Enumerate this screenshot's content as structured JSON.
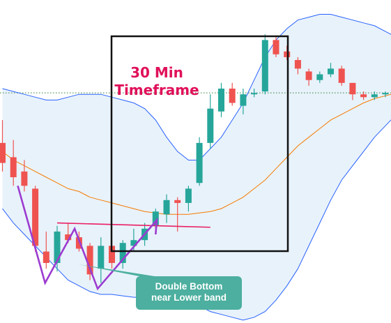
{
  "chart_data": {
    "type": "candlestick",
    "title": "30 Min\nTimeframe",
    "annotation": [
      "Double Bottom",
      "near Lower band"
    ],
    "colors": {
      "up": "#26a69a",
      "down": "#ef5350",
      "upper_band": "#2962ff",
      "lower_band": "#2962ff",
      "middle_band": "#f57c00",
      "band_fill": "#e8f2fb",
      "pattern": "#9c3bd0",
      "neckline": "#e91e63",
      "callout": "#4caf9f",
      "box": "#111111",
      "title": "#e0105a"
    },
    "candles": [
      {
        "o": 1.08,
        "h": 1.16,
        "l": 0.98,
        "c": 1.01
      },
      {
        "o": 1.03,
        "h": 1.09,
        "l": 0.93,
        "c": 0.96
      },
      {
        "o": 0.98,
        "h": 1.02,
        "l": 0.91,
        "c": 0.93
      },
      {
        "o": 0.92,
        "h": 0.93,
        "l": 0.7,
        "c": 0.72
      },
      {
        "o": 0.7,
        "h": 0.77,
        "l": 0.64,
        "c": 0.66
      },
      {
        "o": 0.66,
        "h": 0.79,
        "l": 0.63,
        "c": 0.77
      },
      {
        "o": 0.76,
        "h": 0.8,
        "l": 0.73,
        "c": 0.74
      },
      {
        "o": 0.75,
        "h": 0.77,
        "l": 0.7,
        "c": 0.71
      },
      {
        "o": 0.72,
        "h": 0.73,
        "l": 0.6,
        "c": 0.62
      },
      {
        "o": 0.64,
        "h": 0.75,
        "l": 0.59,
        "c": 0.72
      },
      {
        "o": 0.72,
        "h": 0.74,
        "l": 0.64,
        "c": 0.66
      },
      {
        "o": 0.66,
        "h": 0.74,
        "l": 0.64,
        "c": 0.73
      },
      {
        "o": 0.72,
        "h": 0.78,
        "l": 0.7,
        "c": 0.74
      },
      {
        "o": 0.74,
        "h": 0.8,
        "l": 0.72,
        "c": 0.78
      },
      {
        "o": 0.79,
        "h": 0.85,
        "l": 0.77,
        "c": 0.84
      },
      {
        "o": 0.83,
        "h": 0.9,
        "l": 0.8,
        "c": 0.88
      },
      {
        "o": 0.88,
        "h": 0.89,
        "l": 0.77,
        "c": 0.87
      },
      {
        "o": 0.87,
        "h": 0.93,
        "l": 0.84,
        "c": 0.92
      },
      {
        "o": 0.94,
        "h": 1.1,
        "l": 0.93,
        "c": 1.08
      },
      {
        "o": 1.08,
        "h": 1.25,
        "l": 1.06,
        "c": 1.2
      },
      {
        "o": 1.19,
        "h": 1.29,
        "l": 1.17,
        "c": 1.27
      },
      {
        "o": 1.27,
        "h": 1.29,
        "l": 1.21,
        "c": 1.22
      },
      {
        "o": 1.21,
        "h": 1.27,
        "l": 1.18,
        "c": 1.25
      },
      {
        "o": 1.25,
        "h": 1.27,
        "l": 1.24,
        "c": 1.255
      },
      {
        "o": 1.26,
        "h": 1.46,
        "l": 1.25,
        "c": 1.44
      },
      {
        "o": 1.44,
        "h": 1.45,
        "l": 1.38,
        "c": 1.39
      },
      {
        "o": 1.4,
        "h": 1.42,
        "l": 1.37,
        "c": 1.38
      },
      {
        "o": 1.37,
        "h": 1.38,
        "l": 1.32,
        "c": 1.34
      },
      {
        "o": 1.33,
        "h": 1.34,
        "l": 1.28,
        "c": 1.3
      },
      {
        "o": 1.3,
        "h": 1.33,
        "l": 1.29,
        "c": 1.32
      },
      {
        "o": 1.32,
        "h": 1.36,
        "l": 1.31,
        "c": 1.34
      },
      {
        "o": 1.34,
        "h": 1.35,
        "l": 1.28,
        "c": 1.29
      },
      {
        "o": 1.29,
        "h": 1.29,
        "l": 1.23,
        "c": 1.25
      },
      {
        "o": 1.25,
        "h": 1.26,
        "l": 1.23,
        "c": 1.24
      },
      {
        "o": 1.24,
        "h": 1.26,
        "l": 1.23,
        "c": 1.25
      },
      {
        "o": 1.25,
        "h": 1.26,
        "l": 1.24,
        "c": 1.255
      },
      {
        "o": 1.255,
        "h": 1.27,
        "l": 1.24,
        "c": 1.26
      }
    ],
    "upper_band": [
      1.27,
      1.26,
      1.25,
      1.24,
      1.23,
      1.23,
      1.24,
      1.25,
      1.25,
      1.25,
      1.24,
      1.23,
      1.22,
      1.2,
      1.16,
      1.1,
      1.05,
      1.02,
      1.02,
      1.06,
      1.1,
      1.16,
      1.22,
      1.3,
      1.38,
      1.44,
      1.48,
      1.51,
      1.52,
      1.53,
      1.53,
      1.52,
      1.51,
      1.5,
      1.49,
      1.47,
      1.45
    ],
    "middle_band": [
      1.05,
      1.02,
      1.0,
      0.98,
      0.96,
      0.94,
      0.92,
      0.91,
      0.89,
      0.88,
      0.87,
      0.86,
      0.85,
      0.84,
      0.835,
      0.83,
      0.83,
      0.83,
      0.835,
      0.84,
      0.85,
      0.87,
      0.89,
      0.92,
      0.95,
      0.99,
      1.03,
      1.07,
      1.1,
      1.13,
      1.16,
      1.18,
      1.2,
      1.22,
      1.235,
      1.245,
      1.255
    ],
    "lower_band": [
      0.85,
      0.8,
      0.76,
      0.72,
      0.68,
      0.64,
      0.6,
      0.58,
      0.56,
      0.55,
      0.55,
      0.545,
      0.54,
      0.54,
      0.535,
      0.53,
      0.53,
      0.525,
      0.51,
      0.49,
      0.48,
      0.47,
      0.46,
      0.47,
      0.49,
      0.53,
      0.58,
      0.64,
      0.72,
      0.8,
      0.88,
      0.95,
      1.0,
      1.05,
      1.1,
      1.14,
      1.18
    ],
    "dotted_level": 1.255,
    "neckline_level": 0.8,
    "double_bottom_path": [
      {
        "i": 1.4,
        "v": 0.93
      },
      {
        "i": 3.9,
        "v": 0.59
      },
      {
        "i": 6.6,
        "v": 0.78
      },
      {
        "i": 8.7,
        "v": 0.57
      },
      {
        "i": 14.1,
        "v": 0.81
      },
      {
        "i": 14.0,
        "v": 0.76
      }
    ],
    "ylim": [
      0.45,
      1.58
    ]
  }
}
